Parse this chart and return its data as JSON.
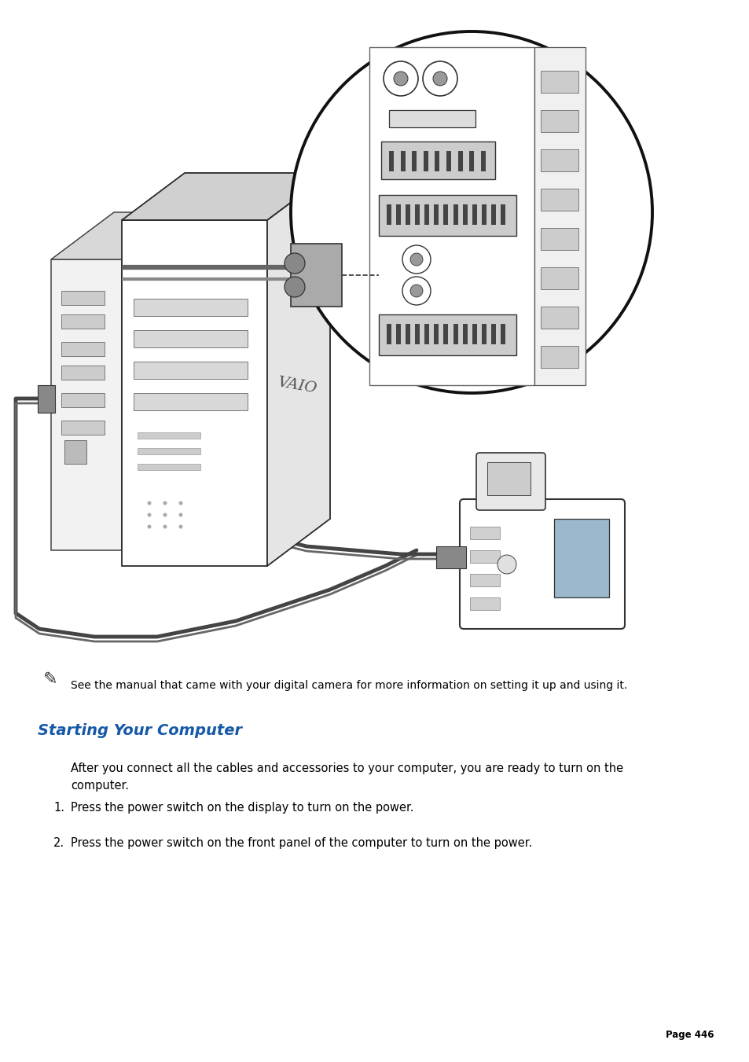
{
  "background_color": "#ffffff",
  "page_width": 9.54,
  "page_height": 13.51,
  "dpi": 100,
  "note_text": "See the manual that came with your digital camera for more information on setting it up and using it.",
  "note_fontsize": 10.0,
  "note_color": "#000000",
  "section_title": "Starting Your Computer",
  "section_title_color": "#1558a7",
  "section_title_fontsize": 14,
  "body_line1": "After you connect all the cables and accessories to your computer, you are ready to turn on the",
  "body_line2": "computer.",
  "body_fontsize": 10.5,
  "body_color": "#000000",
  "list_items": [
    "Press the power switch on the display to turn on the power.",
    "Press the power switch on the front panel of the computer to turn on the power."
  ],
  "list_fontsize": 10.5,
  "list_color": "#000000",
  "page_number_text": "Page 446",
  "page_number_fontsize": 8.5,
  "page_number_color": "#000000"
}
